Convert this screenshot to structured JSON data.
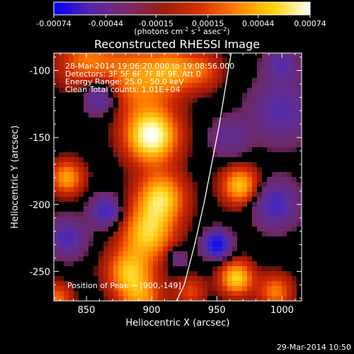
{
  "colorbar": {
    "tick_labels": [
      "-0.00074",
      "-0.00044",
      "-0.00015",
      "0.00015",
      "0.00044",
      "0.00074"
    ],
    "tick_values": [
      -0.00074,
      -0.00044,
      -0.00015,
      0.00015,
      0.00044,
      0.00074
    ],
    "range": [
      -0.00074,
      0.00074
    ],
    "unit_label_prefix": "(photons cm",
    "unit_label_exp1": "-2",
    "unit_label_mid": " s",
    "unit_label_exp2": "-1",
    "unit_label_mid2": " asec",
    "unit_label_exp3": "-2",
    "unit_label_suffix": ")",
    "colors": [
      "#0000ff",
      "#5a23aa",
      "#7a2a6a",
      "#9a1e10",
      "#d93000",
      "#ff8000",
      "#ffd400",
      "#ffffff"
    ]
  },
  "plot": {
    "title": "Reconstructed RHESSI Image",
    "info_lines": [
      "28-Mar-2014 19:06:20.000 to 19:08:56.000",
      "Detectors: 3F 5F 6F 7F 8F 9F, Att 0",
      "Energy Range: 25.0 - 50.0 keV",
      "Clean    Total counts: 1.01E+04"
    ],
    "peak_text": "Position of Peak = [900,-149]",
    "timestamp": "29-Mar-2014 10:50"
  },
  "chart_data": {
    "type": "heatmap",
    "title": "Reconstructed RHESSI Image",
    "xlabel": "Heliocentric X (arcsec)",
    "ylabel": "Heliocentric Y (arcsec)",
    "xlim": [
      825,
      1015
    ],
    "ylim": [
      -272,
      -87
    ],
    "x_ticks": [
      850,
      900,
      950,
      1000
    ],
    "y_ticks": [
      -100,
      -150,
      -200,
      -250
    ],
    "x_tick_labels": [
      "850",
      "900",
      "950",
      "1000"
    ],
    "y_tick_labels": [
      "-100",
      "-150",
      "-200",
      "-250"
    ],
    "peak": {
      "x": 900,
      "y": -149
    },
    "limb_curve": {
      "x": [
        961,
        957,
        952,
        946,
        940,
        933,
        925,
        919
      ],
      "y": [
        -87,
        -110,
        -140,
        -170,
        -200,
        -230,
        -260,
        -272
      ]
    },
    "blobs": [
      {
        "x": 900,
        "y": -149,
        "s": 14,
        "a": 1.0
      },
      {
        "x": 890,
        "y": -105,
        "s": 18,
        "a": 0.55
      },
      {
        "x": 918,
        "y": -100,
        "s": 12,
        "a": 0.45
      },
      {
        "x": 850,
        "y": -92,
        "s": 16,
        "a": 0.45
      },
      {
        "x": 940,
        "y": -100,
        "s": 10,
        "a": 0.35
      },
      {
        "x": 907,
        "y": -195,
        "s": 13,
        "a": 0.75
      },
      {
        "x": 897,
        "y": -222,
        "s": 14,
        "a": 0.7
      },
      {
        "x": 882,
        "y": -250,
        "s": 12,
        "a": 0.6
      },
      {
        "x": 892,
        "y": -270,
        "s": 12,
        "a": 0.5
      },
      {
        "x": 835,
        "y": -180,
        "s": 9,
        "a": 0.6
      },
      {
        "x": 968,
        "y": -186,
        "s": 10,
        "a": 0.7
      },
      {
        "x": 965,
        "y": -255,
        "s": 9,
        "a": 0.75
      },
      {
        "x": 995,
        "y": -265,
        "s": 9,
        "a": 0.5
      },
      {
        "x": 828,
        "y": -270,
        "s": 8,
        "a": 0.45
      },
      {
        "x": 930,
        "y": -265,
        "s": 8,
        "a": 0.35
      },
      {
        "x": 860,
        "y": -120,
        "s": 9,
        "a": -0.55
      },
      {
        "x": 1000,
        "y": -130,
        "s": 16,
        "a": -0.45
      },
      {
        "x": 995,
        "y": -200,
        "s": 12,
        "a": -0.55
      },
      {
        "x": 950,
        "y": -230,
        "s": 7,
        "a": -0.9
      },
      {
        "x": 835,
        "y": -225,
        "s": 10,
        "a": -0.5
      },
      {
        "x": 865,
        "y": -205,
        "s": 8,
        "a": -0.6
      },
      {
        "x": 960,
        "y": -150,
        "s": 10,
        "a": -0.35
      },
      {
        "x": 1000,
        "y": -95,
        "s": 9,
        "a": -0.4
      },
      {
        "x": 920,
        "y": -240,
        "s": 6,
        "a": -0.3
      }
    ]
  }
}
